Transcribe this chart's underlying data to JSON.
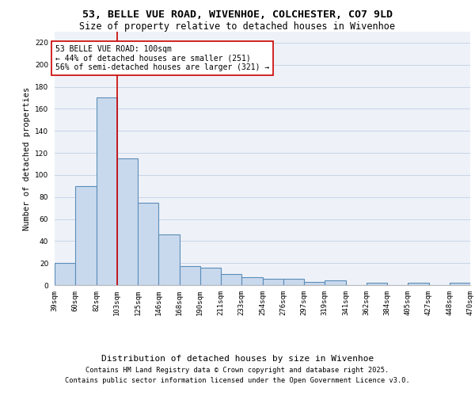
{
  "title_line1": "53, BELLE VUE ROAD, WIVENHOE, COLCHESTER, CO7 9LD",
  "title_line2": "Size of property relative to detached houses in Wivenhoe",
  "xlabel": "Distribution of detached houses by size in Wivenhoe",
  "ylabel": "Number of detached properties",
  "bar_values": [
    20,
    90,
    170,
    115,
    75,
    46,
    17,
    16,
    10,
    7,
    6,
    6,
    3,
    4,
    0,
    2,
    0,
    2,
    0,
    2
  ],
  "bar_labels": [
    "39sqm",
    "60sqm",
    "82sqm",
    "103sqm",
    "125sqm",
    "146sqm",
    "168sqm",
    "190sqm",
    "211sqm",
    "233sqm",
    "254sqm",
    "276sqm",
    "297sqm",
    "319sqm",
    "341sqm",
    "362sqm",
    "384sqm",
    "405sqm",
    "427sqm",
    "448sqm"
  ],
  "x_extra_label": "470sqm",
  "bar_color": "#c9d9ed",
  "bar_edge_color": "#5b8db8",
  "bar_edge_width": 0.8,
  "vline_color": "#cc0000",
  "annotation_box_text": "53 BELLE VUE ROAD: 100sqm\n← 44% of detached houses are smaller (251)\n56% of semi-detached houses are larger (321) →",
  "annotation_color": "#cc0000",
  "background_color": "#eef2f8",
  "grid_color": "#c8d4e8",
  "ylim": [
    0,
    230
  ],
  "yticks": [
    0,
    20,
    40,
    60,
    80,
    100,
    120,
    140,
    160,
    180,
    200,
    220
  ],
  "footnote1": "Contains HM Land Registry data © Crown copyright and database right 2025.",
  "footnote2": "Contains public sector information licensed under the Open Government Licence v3.0.",
  "title_fontsize": 9.5,
  "subtitle_fontsize": 8.5,
  "ylabel_fontsize": 7.5,
  "xlabel_fontsize": 8,
  "tick_fontsize": 6.5,
  "annot_fontsize": 7,
  "footnote_fontsize": 6.2
}
